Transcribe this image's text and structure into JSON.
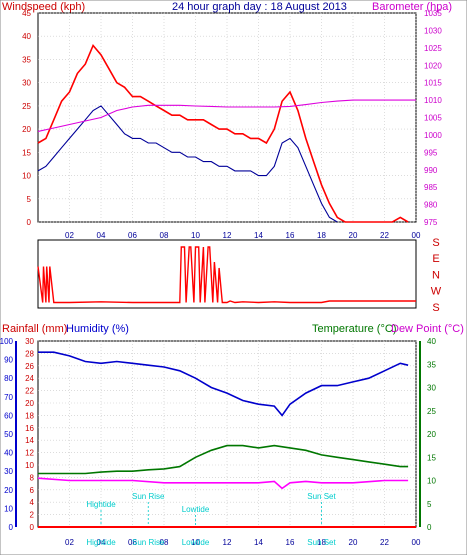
{
  "chart_data": [
    {
      "type": "line",
      "title": "24 hour graph day : 18 August 2013",
      "left_axis_label": "Windspeed (kph)",
      "right_axis_label": "Barometer (hpa)",
      "y_left_range": [
        0,
        45
      ],
      "y_left_ticks": [
        "0",
        "5",
        "10",
        "15",
        "20",
        "25",
        "30",
        "35",
        "40",
        "45"
      ],
      "y_right_range": [
        975,
        1035
      ],
      "y_right_ticks": [
        "975",
        "980",
        "985",
        "990",
        "995",
        "1000",
        "1005",
        "1010",
        "1015",
        "1020",
        "1025",
        "1030",
        "1035"
      ],
      "x_range_hours": [
        0,
        24
      ],
      "x_ticks": [
        "02",
        "04",
        "06",
        "08",
        "10",
        "12",
        "14",
        "16",
        "18",
        "20",
        "22",
        "00"
      ],
      "grid": true,
      "colors": {
        "gust": "#ff0000",
        "average": "#000099",
        "barometer": "#dd00dd",
        "axis_left": "#cc0000",
        "axis_right": "#cc00cc"
      },
      "series": [
        {
          "name": "gust",
          "axis": "left",
          "x": [
            0,
            0.5,
            1,
            1.5,
            2,
            2.5,
            3,
            3.5,
            4,
            4.5,
            5,
            5.5,
            6,
            6.5,
            7,
            7.5,
            8,
            8.5,
            9,
            9.5,
            10,
            10.5,
            11,
            11.5,
            12,
            12.5,
            13,
            13.5,
            14,
            14.5,
            15,
            15.5,
            16,
            16.5,
            17,
            17.5,
            18,
            18.5,
            19,
            19.5,
            20,
            20.5,
            21,
            21.5,
            22,
            22.5,
            23,
            23.5
          ],
          "values": [
            17,
            18,
            22,
            26,
            28,
            32,
            34,
            38,
            36,
            33,
            30,
            29,
            27,
            27,
            26,
            25,
            24,
            23,
            23,
            22,
            22,
            22,
            21,
            20,
            20,
            19,
            19,
            18,
            18,
            17,
            20,
            26,
            28,
            24,
            18,
            13,
            8,
            4,
            1,
            0,
            0,
            0,
            0,
            0,
            0,
            0,
            1,
            0
          ]
        },
        {
          "name": "average",
          "axis": "left",
          "x": [
            0,
            0.5,
            1,
            1.5,
            2,
            2.5,
            3,
            3.5,
            4,
            4.5,
            5,
            5.5,
            6,
            6.5,
            7,
            7.5,
            8,
            8.5,
            9,
            9.5,
            10,
            10.5,
            11,
            11.5,
            12,
            12.5,
            13,
            13.5,
            14,
            14.5,
            15,
            15.5,
            16,
            16.5,
            17,
            17.5,
            18,
            18.5,
            19
          ],
          "values": [
            11,
            12,
            14,
            16,
            18,
            20,
            22,
            24,
            25,
            23,
            21,
            19,
            18,
            18,
            17,
            17,
            16,
            15,
            15,
            14,
            14,
            13,
            13,
            12,
            12,
            11,
            11,
            11,
            10,
            10,
            12,
            17,
            18,
            16,
            12,
            8,
            4,
            1,
            0
          ]
        },
        {
          "name": "barometer",
          "axis": "right",
          "x": [
            0,
            1,
            2,
            3,
            4,
            5,
            6,
            7,
            8,
            9,
            10,
            11,
            12,
            13,
            14,
            15,
            16,
            17,
            18,
            19,
            20,
            21,
            22,
            23,
            24
          ],
          "values": [
            1001,
            1002,
            1003,
            1004,
            1005,
            1007,
            1008,
            1008.5,
            1008.5,
            1008.5,
            1008.3,
            1008.2,
            1008,
            1008,
            1008,
            1008,
            1008.2,
            1008.7,
            1009.3,
            1009.7,
            1010,
            1010,
            1010,
            1010,
            1010
          ]
        }
      ]
    },
    {
      "type": "line",
      "title": "",
      "direction_labels": [
        "S",
        "E",
        "N",
        "W",
        "S"
      ],
      "x_range_hours": [
        0,
        24
      ],
      "colors": {
        "direction": "#ff0000",
        "labels": "#cc0000"
      },
      "series": [
        {
          "name": "direction",
          "x": [
            0,
            0.3,
            0.35,
            0.5,
            0.55,
            0.7,
            0.75,
            1,
            2,
            4,
            6,
            8,
            9,
            9.1,
            9.3,
            9.4,
            9.6,
            9.7,
            9.9,
            10,
            10.2,
            10.3,
            10.5,
            10.6,
            10.8,
            10.9,
            11.1,
            11.2,
            11.4,
            11.5,
            11.7,
            11.8,
            12,
            12.2,
            12.5,
            13,
            14,
            15,
            16,
            17,
            18,
            18.5,
            19,
            20,
            22,
            24
          ],
          "values": [
            2.5,
            0.1,
            2.5,
            0.1,
            2.5,
            0.1,
            2.5,
            0.1,
            0.1,
            0.15,
            0.1,
            0.1,
            0.1,
            3.8,
            3.8,
            0.1,
            3.8,
            3.8,
            0.1,
            3.8,
            3.8,
            0.1,
            3.8,
            0.1,
            3.8,
            3.8,
            0.1,
            2.8,
            0.1,
            2.4,
            0.1,
            0.1,
            0.1,
            0.2,
            0.1,
            0.15,
            0.1,
            0.15,
            0.1,
            0.1,
            0.1,
            0.2,
            0.2,
            0.2,
            0.2,
            0.2
          ]
        }
      ]
    },
    {
      "type": "line",
      "title": "",
      "left_axis_label_rain": "Rainfall (mm)",
      "left_axis_label_humidity": "Humidity (%)",
      "right_axis_label_temp": "Temperature (°C)",
      "right_axis_label_dew": "Dew Point (°C)",
      "rain_ticks": [
        "0",
        "2",
        "4",
        "6",
        "8",
        "10",
        "12",
        "14",
        "16",
        "18",
        "20",
        "22",
        "24",
        "26",
        "28",
        "30"
      ],
      "humidity_ticks": [
        "0",
        "10",
        "20",
        "30",
        "40",
        "50",
        "60",
        "70",
        "80",
        "90",
        "100"
      ],
      "temp_ticks": [
        "0",
        "5",
        "10",
        "15",
        "20",
        "25",
        "30",
        "35",
        "40"
      ],
      "humidity_range": [
        0,
        100
      ],
      "temp_range": [
        0,
        40
      ],
      "x_range_hours": [
        0,
        24
      ],
      "x_ticks": [
        "02",
        "04",
        "06",
        "08",
        "10",
        "12",
        "14",
        "16",
        "18",
        "20",
        "22",
        "00"
      ],
      "grid": true,
      "colors": {
        "humidity": "#0000cc",
        "temperature": "#007700",
        "dewpoint": "#ff00ff",
        "rain": "#ff0000",
        "axis_rain": "#cc0000",
        "axis_humidity": "#0000cc",
        "axis_temp": "#007700",
        "axis_dew": "#cc00cc",
        "annotations": "#00cccc"
      },
      "annotations": [
        {
          "text": "Hightide",
          "x": 4
        },
        {
          "text": "Sun Rise",
          "x": 7
        },
        {
          "text": "Lowtide",
          "x": 10
        },
        {
          "text": "Sun Set",
          "x": 18
        }
      ],
      "series": [
        {
          "name": "humidity",
          "x": [
            0,
            1,
            2,
            3,
            4,
            5,
            6,
            7,
            8,
            9,
            10,
            11,
            12,
            13,
            14,
            15,
            15.5,
            16,
            17,
            18,
            19,
            20,
            21,
            22,
            23,
            23.5
          ],
          "values": [
            94,
            94,
            92,
            89,
            88,
            89,
            88,
            87,
            86,
            84,
            80,
            75,
            72,
            68,
            66,
            65,
            60,
            66,
            72,
            76,
            76,
            78,
            80,
            84,
            88,
            87
          ]
        },
        {
          "name": "temperature",
          "x": [
            0,
            1,
            2,
            3,
            4,
            5,
            6,
            7,
            8,
            9,
            10,
            11,
            12,
            13,
            14,
            15,
            16,
            17,
            18,
            19,
            20,
            21,
            22,
            23,
            23.5
          ],
          "values": [
            11.5,
            11.5,
            11.5,
            11.5,
            11.8,
            12,
            12,
            12.3,
            12.5,
            13,
            15,
            16.5,
            17.5,
            17.5,
            17,
            17.5,
            17,
            16.5,
            15.5,
            15,
            14.5,
            14,
            13.5,
            13,
            13
          ]
        },
        {
          "name": "dewpoint",
          "x": [
            0,
            2,
            4,
            6,
            8,
            10,
            12,
            14,
            15,
            15.5,
            16,
            17,
            18,
            20,
            22,
            23.5
          ],
          "values": [
            10.5,
            10,
            10,
            10,
            9.5,
            9.5,
            9.5,
            9.5,
            9.8,
            8.3,
            9.5,
            9.8,
            9.5,
            9.5,
            10,
            10
          ]
        },
        {
          "name": "rain",
          "x": [
            0,
            24
          ],
          "values": [
            0,
            0
          ]
        }
      ]
    }
  ]
}
